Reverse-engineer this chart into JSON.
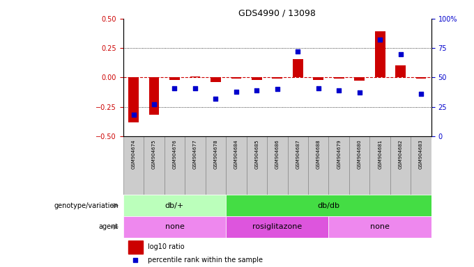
{
  "title": "GDS4990 / 13098",
  "samples": [
    "GSM904674",
    "GSM904675",
    "GSM904676",
    "GSM904677",
    "GSM904678",
    "GSM904684",
    "GSM904685",
    "GSM904686",
    "GSM904687",
    "GSM904688",
    "GSM904679",
    "GSM904680",
    "GSM904681",
    "GSM904682",
    "GSM904683"
  ],
  "log10_ratio": [
    -0.38,
    -0.32,
    -0.02,
    0.01,
    -0.04,
    -0.01,
    -0.02,
    -0.01,
    0.155,
    -0.02,
    -0.01,
    -0.03,
    0.39,
    0.105,
    -0.01
  ],
  "percentile_rank": [
    18,
    27,
    41,
    41,
    32,
    38,
    39,
    40,
    72,
    41,
    39,
    37,
    82,
    70,
    36
  ],
  "ylim_left": [
    -0.5,
    0.5
  ],
  "ylim_right": [
    0,
    100
  ],
  "yticks_left": [
    -0.5,
    -0.25,
    0,
    0.25,
    0.5
  ],
  "yticks_right": [
    0,
    25,
    50,
    75,
    100
  ],
  "bar_color": "#cc0000",
  "dot_color": "#0000cc",
  "zero_line_color": "#cc0000",
  "genotype_groups": [
    {
      "label": "db/+",
      "start": 0,
      "end": 4,
      "color": "#bbffbb"
    },
    {
      "label": "db/db",
      "start": 5,
      "end": 14,
      "color": "#44dd44"
    }
  ],
  "agent_groups": [
    {
      "label": "none",
      "start": 0,
      "end": 4,
      "color": "#ee88ee"
    },
    {
      "label": "rosiglitazone",
      "start": 5,
      "end": 9,
      "color": "#dd55dd"
    },
    {
      "label": "none",
      "start": 10,
      "end": 14,
      "color": "#ee88ee"
    }
  ],
  "legend_bar_color": "#cc0000",
  "legend_dot_color": "#0000cc",
  "legend_label_bar": "log10 ratio",
  "legend_label_dot": "percentile rank within the sample",
  "left_label_geno": "genotype/variation",
  "left_label_agent": "agent",
  "background_color": "#ffffff",
  "tick_bg_color": "#dddddd",
  "tick_label_color_left": "#cc0000",
  "tick_label_color_right": "#0000cc",
  "sample_box_color": "#cccccc",
  "sample_box_edge": "#888888"
}
